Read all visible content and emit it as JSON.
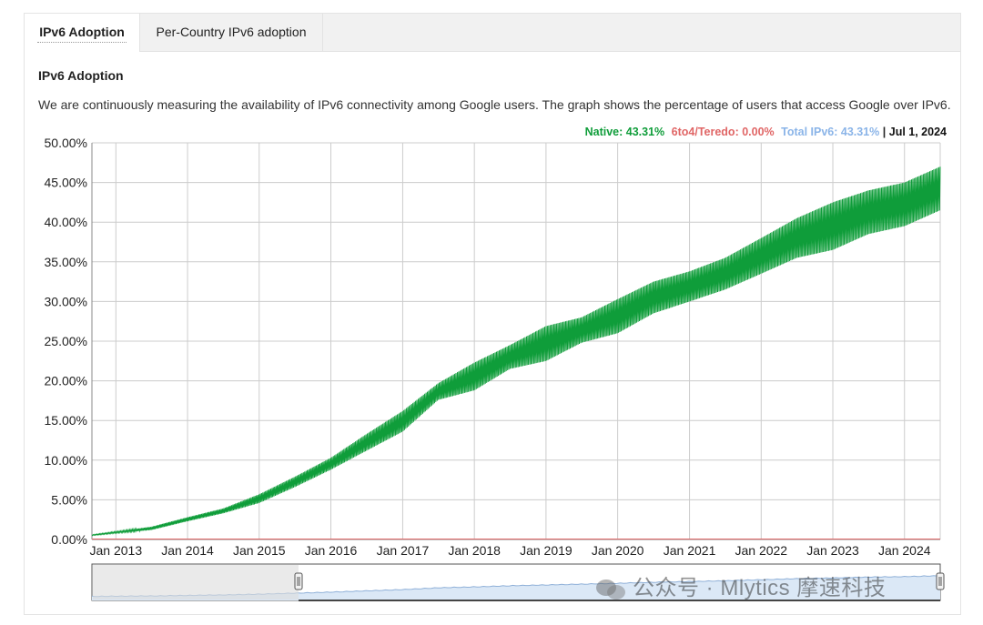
{
  "tabs": [
    {
      "label": "IPv6 Adoption",
      "active": true
    },
    {
      "label": "Per-Country IPv6 adoption",
      "active": false
    }
  ],
  "section_title": "IPv6 Adoption",
  "description": "We are continuously measuring the availability of IPv6 connectivity among Google users. The graph shows the percentage of users that access Google over IPv6.",
  "legend": {
    "native": "Native: 43.31%",
    "teredo": "6to4/Teredo: 0.00%",
    "total": "Total IPv6: 43.31%",
    "separator": " | ",
    "date": "Jul 1, 2024"
  },
  "colors": {
    "native": "#0f9d3a",
    "teredo": "#e06666",
    "total": "#8ab4e8",
    "grid": "#cccccc",
    "navigator_fill": "#dbe8f6",
    "navigator_line": "#8fb0d8"
  },
  "watermark": "公众号 · Mlytics 摩速科技",
  "chart_data": {
    "type": "area",
    "title": "",
    "xlabel": "",
    "ylabel": "",
    "ylim": [
      0,
      50
    ],
    "y_ticks": [
      "0.00%",
      "5.00%",
      "10.00%",
      "15.00%",
      "20.00%",
      "25.00%",
      "30.00%",
      "35.00%",
      "40.00%",
      "45.00%",
      "50.00%"
    ],
    "y_tick_values": [
      0,
      5,
      10,
      15,
      20,
      25,
      30,
      35,
      40,
      45,
      50
    ],
    "x_range": [
      "2012-09-01",
      "2024-07-01"
    ],
    "x_ticks": [
      "Jan 2013",
      "Jan 2014",
      "Jan 2015",
      "Jan 2016",
      "Jan 2017",
      "Jan 2018",
      "Jan 2019",
      "Jan 2020",
      "Jan 2021",
      "Jan 2022",
      "Jan 2023",
      "Jan 2024"
    ],
    "x_tick_dates": [
      "2013-01-01",
      "2014-01-01",
      "2015-01-01",
      "2016-01-01",
      "2017-01-01",
      "2018-01-01",
      "2019-01-01",
      "2020-01-01",
      "2021-01-01",
      "2022-01-01",
      "2023-01-01",
      "2024-01-01"
    ],
    "grid": true,
    "legend_position": "top-right",
    "series": [
      {
        "name": "Native",
        "dates": [
          "2012-09-01",
          "2013-01-01",
          "2013-07-01",
          "2014-01-01",
          "2014-07-01",
          "2015-01-01",
          "2015-07-01",
          "2016-01-01",
          "2016-07-01",
          "2017-01-01",
          "2017-07-01",
          "2018-01-01",
          "2018-07-01",
          "2019-01-01",
          "2019-07-01",
          "2020-01-01",
          "2020-07-01",
          "2021-01-01",
          "2021-07-01",
          "2022-01-01",
          "2022-07-01",
          "2023-01-01",
          "2023-07-01",
          "2024-01-01",
          "2024-07-01"
        ],
        "low": [
          0.5,
          0.8,
          1.2,
          2.3,
          3.3,
          4.6,
          6.6,
          8.8,
          11.2,
          13.6,
          17.6,
          18.8,
          21.5,
          22.5,
          24.8,
          26.0,
          28.5,
          30.0,
          31.5,
          33.5,
          35.5,
          36.5,
          38.5,
          39.5,
          41.5
        ],
        "high": [
          0.6,
          1.0,
          1.6,
          2.8,
          3.9,
          5.7,
          7.9,
          10.3,
          13.3,
          16.2,
          19.7,
          22.3,
          24.5,
          26.9,
          28.0,
          30.3,
          32.5,
          33.8,
          35.5,
          38.0,
          40.5,
          42.5,
          44.0,
          45.0,
          47.0
        ]
      },
      {
        "name": "6to4/Teredo",
        "dates": [
          "2012-09-01",
          "2024-07-01"
        ],
        "values": [
          0.0,
          0.0
        ]
      }
    ]
  }
}
